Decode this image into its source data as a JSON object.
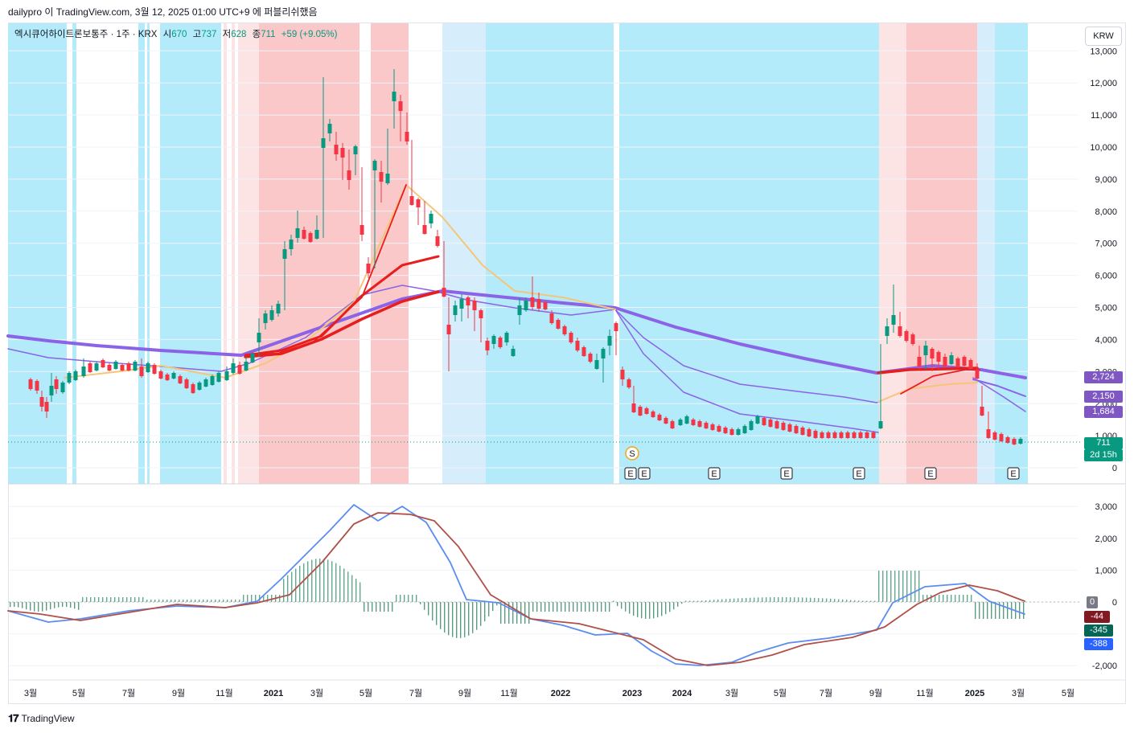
{
  "header": {
    "text": "dailypro 이 TradingView.com, 3월 12, 2025 01:00 UTC+9 에 퍼블리쉬했음"
  },
  "legend": {
    "symbol": "엑시큐어하이트론보통주 · 1주 · KRX",
    "open_label": "시",
    "open": "670",
    "high_label": "고",
    "high": "737",
    "low_label": "저",
    "low": "628",
    "close_label": "종",
    "close": "711",
    "change": "+59 (+9.05%)"
  },
  "currency_button": "KRW",
  "price_axis": [
    "13,000",
    "12,000",
    "11,000",
    "10,000",
    "9,000",
    "8,000",
    "7,000",
    "6,000",
    "5,000",
    "4,000",
    "3,000",
    "2,000",
    "1,000",
    "0"
  ],
  "macd_axis": [
    "3,000",
    "2,000",
    "1,000",
    "0",
    "-2,000"
  ],
  "time_axis": [
    "3월",
    "5월",
    "7월",
    "9월",
    "11월",
    "2021",
    "3월",
    "5월",
    "7월",
    "9월",
    "11월",
    "2022",
    "2023",
    "2024",
    "3월",
    "5월",
    "7월",
    "9월",
    "11월",
    "2025",
    "3월",
    "5월"
  ],
  "price_labels": [
    {
      "text": "2,724",
      "color": "#7e57c2"
    },
    {
      "text": "2,150",
      "color": "#7e57c2"
    },
    {
      "text": "1,684",
      "color": "#7e57c2"
    },
    {
      "text": "711",
      "color": "#089981"
    },
    {
      "text": "2d 15h",
      "color": "#089981"
    }
  ],
  "macd_labels": [
    {
      "text": "0",
      "color": "#787b86"
    },
    {
      "text": "-44",
      "color": "#801922"
    },
    {
      "text": "-345",
      "color": "#056656"
    },
    {
      "text": "-388",
      "color": "#2962ff"
    }
  ],
  "event_markers": {
    "earnings": "E",
    "split": "S"
  },
  "footer": {
    "brand": "TradingView"
  }
}
